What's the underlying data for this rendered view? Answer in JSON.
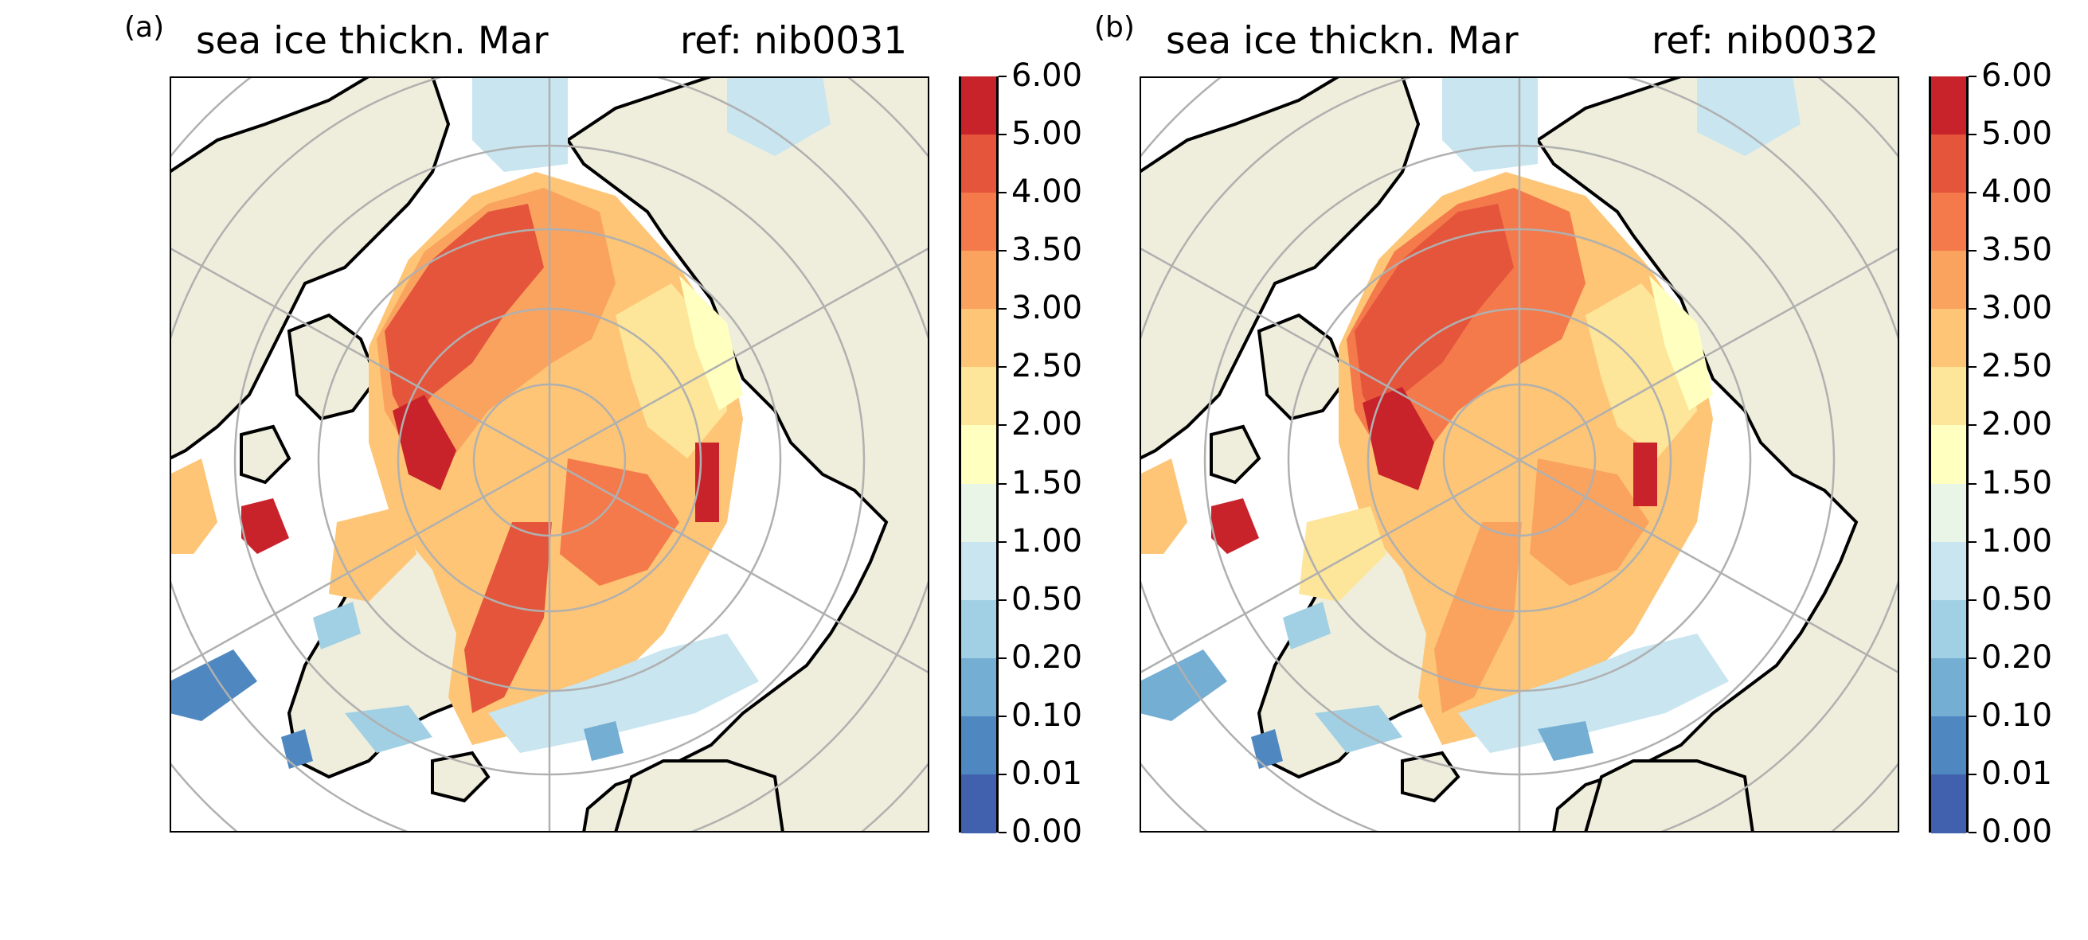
{
  "panels": [
    {
      "label": "(a)",
      "title": "sea ice thickn. Mar",
      "ref": "ref: nib0031"
    },
    {
      "label": "(b)",
      "title": "sea ice thickn. Mar",
      "ref": "ref: nib0032"
    }
  ],
  "colorbar": {
    "ticks": [
      "6.00",
      "5.00",
      "4.00",
      "3.50",
      "3.00",
      "2.50",
      "2.00",
      "1.50",
      "1.00",
      "0.50",
      "0.20",
      "0.10",
      "0.01",
      "0.00"
    ],
    "colors": [
      "#c8232b",
      "#e5553b",
      "#f4794b",
      "#f9a35f",
      "#fdc575",
      "#fde59a",
      "#ffffbf",
      "#e9f5e6",
      "#c8e5f0",
      "#a1d0e4",
      "#74aed3",
      "#4f87c0",
      "#4160ad"
    ]
  },
  "map_colors": {
    "land": "#efeedc",
    "ocean": "#ffffff",
    "grid": "#b0b0b0",
    "coast": "#000000"
  }
}
